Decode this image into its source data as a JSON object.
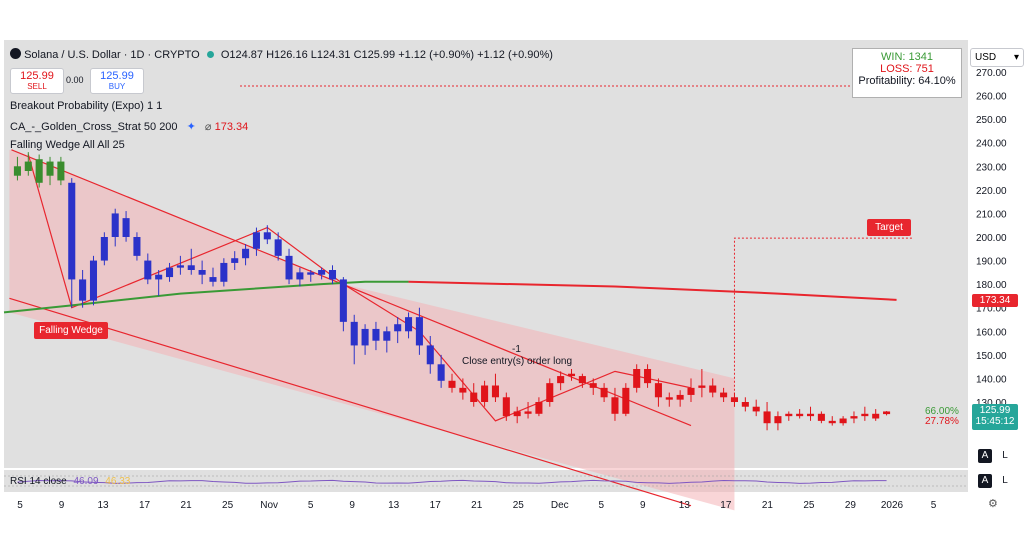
{
  "header": {
    "symbol": "Solana / U.S. Dollar · 1D · CRYPTO",
    "ohlc": "O124.87  H126.16  L124.31  C125.99  +1.12 (+0.90%)  +1.12 (+0.90%)",
    "sell_price": "125.99",
    "sell_label": "SELL",
    "spread": "0.00",
    "buy_price": "125.99",
    "buy_label": "BUY",
    "currency": "USD"
  },
  "indicators": [
    {
      "label": "Breakout Probability (Expo) 1 1"
    },
    {
      "label": "CA_-_Golden_Cross_Strat 50 200",
      "value": "173.34"
    },
    {
      "label": "Falling Wedge All All 25"
    }
  ],
  "stats": {
    "win": "WIN: 1341",
    "loss": "LOSS: 751",
    "profitability": "Profitability: 64.10%"
  },
  "annotations": {
    "falling_wedge": "Falling Wedge",
    "target": "Target",
    "close_entry": "Close entry(s) order long",
    "close_qty": "-1",
    "prob_up": "66.00%",
    "prob_down": "27.78%"
  },
  "price_tags": {
    "ma": "173.34",
    "last": "125.99",
    "countdown": "15:45:12"
  },
  "rsi": {
    "label": "RSI 14 close",
    "value": "46.09",
    "value2": "46.33"
  },
  "buttons": {
    "a": "A",
    "l": "L"
  },
  "colors": {
    "bull": "#2b32c9",
    "bear": "#e0141a",
    "green_candle": "#3a8d2e",
    "wedge_fill": "#f4b3b6",
    "wedge_line": "#e8262e",
    "ma_red": "#e8262e",
    "ma_green": "#3a9a36"
  },
  "chart_data": {
    "type": "candlestick",
    "y_axis_ticks": [
      270,
      260,
      250,
      240,
      230,
      220,
      210,
      200,
      190,
      180,
      170,
      160,
      150,
      140,
      130
    ],
    "ylim": [
      115,
      275
    ],
    "x_axis_ticks": [
      "5",
      "9",
      "13",
      "17",
      "21",
      "25",
      "Nov",
      "5",
      "9",
      "13",
      "17",
      "21",
      "25",
      "Dec",
      "5",
      "9",
      "13",
      "17",
      "21",
      "25",
      "29",
      "2026",
      "5"
    ],
    "candles": [
      {
        "o": 230,
        "h": 234,
        "l": 224,
        "c": 226
      },
      {
        "o": 232,
        "h": 236,
        "l": 226,
        "c": 228
      },
      {
        "o": 233,
        "h": 235,
        "l": 221,
        "c": 223
      },
      {
        "o": 226,
        "h": 234,
        "l": 222,
        "c": 232
      },
      {
        "o": 232,
        "h": 234,
        "l": 222,
        "c": 224
      },
      {
        "o": 223,
        "h": 225,
        "l": 170,
        "c": 182
      },
      {
        "o": 182,
        "h": 186,
        "l": 170,
        "c": 173
      },
      {
        "o": 173,
        "h": 192,
        "l": 171,
        "c": 190
      },
      {
        "o": 190,
        "h": 202,
        "l": 188,
        "c": 200
      },
      {
        "o": 200,
        "h": 212,
        "l": 196,
        "c": 210
      },
      {
        "o": 208,
        "h": 211,
        "l": 198,
        "c": 200
      },
      {
        "o": 200,
        "h": 202,
        "l": 190,
        "c": 192
      },
      {
        "o": 190,
        "h": 193,
        "l": 180,
        "c": 182
      },
      {
        "o": 182,
        "h": 186,
        "l": 175,
        "c": 184
      },
      {
        "o": 183,
        "h": 189,
        "l": 181,
        "c": 187
      },
      {
        "o": 187,
        "h": 192,
        "l": 184,
        "c": 188
      },
      {
        "o": 188,
        "h": 195,
        "l": 184,
        "c": 186
      },
      {
        "o": 186,
        "h": 190,
        "l": 180,
        "c": 184
      },
      {
        "o": 183,
        "h": 187,
        "l": 179,
        "c": 181
      },
      {
        "o": 181,
        "h": 191,
        "l": 179,
        "c": 189
      },
      {
        "o": 189,
        "h": 194,
        "l": 186,
        "c": 191
      },
      {
        "o": 191,
        "h": 197,
        "l": 188,
        "c": 195
      },
      {
        "o": 195,
        "h": 204,
        "l": 192,
        "c": 202
      },
      {
        "o": 202,
        "h": 205,
        "l": 197,
        "c": 199
      },
      {
        "o": 199,
        "h": 202,
        "l": 190,
        "c": 192
      },
      {
        "o": 192,
        "h": 195,
        "l": 180,
        "c": 182
      },
      {
        "o": 182,
        "h": 187,
        "l": 179,
        "c": 185
      },
      {
        "o": 185,
        "h": 186,
        "l": 181,
        "c": 184
      },
      {
        "o": 184,
        "h": 187,
        "l": 182,
        "c": 186
      },
      {
        "o": 186,
        "h": 188,
        "l": 180,
        "c": 182
      },
      {
        "o": 182,
        "h": 183,
        "l": 160,
        "c": 164
      },
      {
        "o": 164,
        "h": 167,
        "l": 146,
        "c": 154
      },
      {
        "o": 154,
        "h": 163,
        "l": 150,
        "c": 161
      },
      {
        "o": 161,
        "h": 164,
        "l": 152,
        "c": 156
      },
      {
        "o": 156,
        "h": 162,
        "l": 151,
        "c": 160
      },
      {
        "o": 160,
        "h": 166,
        "l": 155,
        "c": 163
      },
      {
        "o": 160,
        "h": 168,
        "l": 157,
        "c": 166
      },
      {
        "o": 166,
        "h": 170,
        "l": 150,
        "c": 154
      },
      {
        "o": 154,
        "h": 158,
        "l": 142,
        "c": 146
      },
      {
        "o": 146,
        "h": 150,
        "l": 136,
        "c": 139
      },
      {
        "o": 139,
        "h": 142,
        "l": 134,
        "c": 136
      },
      {
        "o": 136,
        "h": 140,
        "l": 131,
        "c": 134
      },
      {
        "o": 134,
        "h": 138,
        "l": 128,
        "c": 130
      },
      {
        "o": 130,
        "h": 139,
        "l": 128,
        "c": 137
      },
      {
        "o": 137,
        "h": 142,
        "l": 130,
        "c": 132
      },
      {
        "o": 132,
        "h": 134,
        "l": 122,
        "c": 124
      },
      {
        "o": 124,
        "h": 128,
        "l": 121,
        "c": 126
      },
      {
        "o": 126,
        "h": 130,
        "l": 123,
        "c": 125
      },
      {
        "o": 125,
        "h": 132,
        "l": 124,
        "c": 130
      },
      {
        "o": 130,
        "h": 140,
        "l": 128,
        "c": 138
      },
      {
        "o": 138,
        "h": 143,
        "l": 135,
        "c": 141
      },
      {
        "o": 141,
        "h": 144,
        "l": 139,
        "c": 142
      },
      {
        "o": 141,
        "h": 142,
        "l": 136,
        "c": 138
      },
      {
        "o": 138,
        "h": 140,
        "l": 133,
        "c": 136
      },
      {
        "o": 136,
        "h": 138,
        "l": 130,
        "c": 132
      },
      {
        "o": 132,
        "h": 136,
        "l": 122,
        "c": 125
      },
      {
        "o": 125,
        "h": 138,
        "l": 124,
        "c": 136
      },
      {
        "o": 136,
        "h": 146,
        "l": 134,
        "c": 144
      },
      {
        "o": 144,
        "h": 146,
        "l": 136,
        "c": 138
      },
      {
        "o": 138,
        "h": 140,
        "l": 128,
        "c": 132
      },
      {
        "o": 132,
        "h": 134,
        "l": 128,
        "c": 131
      },
      {
        "o": 131,
        "h": 135,
        "l": 128,
        "c": 133
      },
      {
        "o": 133,
        "h": 140,
        "l": 130,
        "c": 136
      },
      {
        "o": 136,
        "h": 144,
        "l": 132,
        "c": 137
      },
      {
        "o": 137,
        "h": 140,
        "l": 132,
        "c": 134
      },
      {
        "o": 134,
        "h": 136,
        "l": 130,
        "c": 132
      },
      {
        "o": 132,
        "h": 134,
        "l": 128,
        "c": 130
      },
      {
        "o": 130,
        "h": 132,
        "l": 126,
        "c": 128
      },
      {
        "o": 128,
        "h": 131,
        "l": 124,
        "c": 126
      },
      {
        "o": 126,
        "h": 130,
        "l": 118,
        "c": 121
      },
      {
        "o": 121,
        "h": 126,
        "l": 118,
        "c": 124
      },
      {
        "o": 124,
        "h": 126,
        "l": 122,
        "c": 125
      },
      {
        "o": 125,
        "h": 127,
        "l": 123,
        "c": 124
      },
      {
        "o": 124,
        "h": 128,
        "l": 122,
        "c": 125
      },
      {
        "o": 125,
        "h": 126,
        "l": 121,
        "c": 122
      },
      {
        "o": 122,
        "h": 124,
        "l": 120,
        "c": 121
      },
      {
        "o": 121,
        "h": 124,
        "l": 120,
        "c": 123
      },
      {
        "o": 123,
        "h": 126,
        "l": 121,
        "c": 124
      },
      {
        "o": 124,
        "h": 128,
        "l": 122,
        "c": 125
      },
      {
        "o": 125,
        "h": 127,
        "l": 122,
        "c": 123
      },
      {
        "o": 124.87,
        "h": 126.16,
        "l": 124.31,
        "c": 125.99
      }
    ]
  }
}
